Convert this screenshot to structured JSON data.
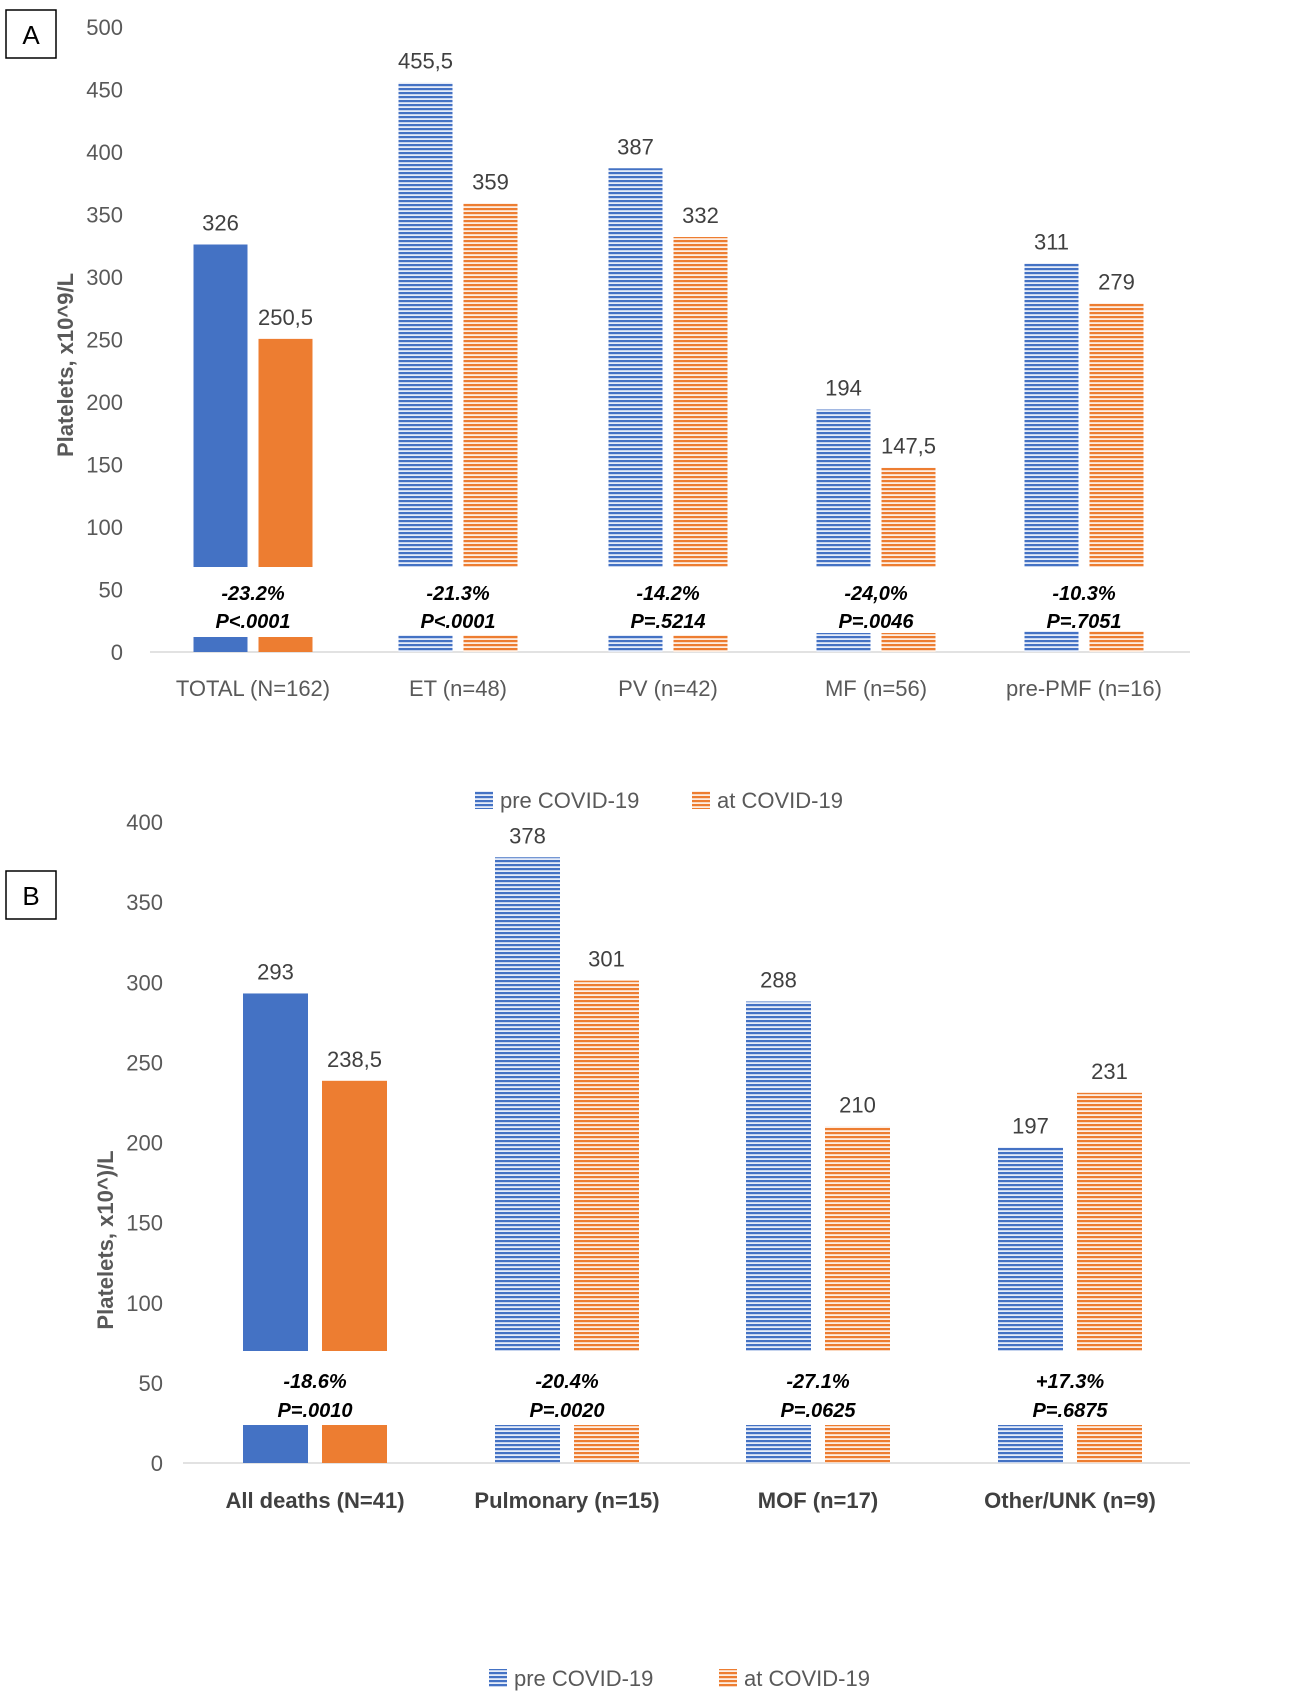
{
  "colors": {
    "pre": "#4472c4",
    "at": "#ed7d31",
    "axis": "#d9d9d9"
  },
  "chart_data": [
    {
      "type": "bar",
      "panel_label": "A",
      "ylabel": "Platelets, x10^9/L",
      "ylim": [
        0,
        500
      ],
      "yticks": [
        "0",
        "50",
        "100",
        "150",
        "200",
        "250",
        "300",
        "350",
        "400",
        "450",
        "500"
      ],
      "categories": [
        "TOTAL (N=162)",
        "ET (n=48)",
        "PV (n=42)",
        "MF (n=56)",
        "pre-PMF (n=16)"
      ],
      "bold_categories": false,
      "series": [
        {
          "name": "pre COVID-19",
          "values": [
            326,
            455.5,
            387,
            194,
            311
          ],
          "labels": [
            "326",
            "455,5",
            "387",
            "194",
            "311"
          ]
        },
        {
          "name": "at COVID-19",
          "values": [
            250.5,
            359,
            332,
            147.5,
            279
          ],
          "labels": [
            "250,5",
            "359",
            "332",
            "147,5",
            "279"
          ]
        }
      ],
      "annotations": [
        {
          "change": "-23.2%",
          "p": "P<.0001"
        },
        {
          "change": "-21.3%",
          "p": "P<.0001"
        },
        {
          "change": "-14.2%",
          "p": "P=.5214"
        },
        {
          "change": "-24,0%",
          "p": "P=.0046"
        },
        {
          "change": "-10.3%",
          "p": "P=.7051"
        }
      ],
      "legend": [
        "pre COVID-19",
        "at COVID-19"
      ],
      "legend_position": "bottom"
    },
    {
      "type": "bar",
      "panel_label": "B",
      "ylabel": "Platelets, x10^)/L",
      "ylim": [
        0,
        400
      ],
      "yticks": [
        "0",
        "50",
        "100",
        "150",
        "200",
        "250",
        "300",
        "350",
        "400"
      ],
      "categories": [
        "All deaths (N=41)",
        "Pulmonary (n=15)",
        "MOF (n=17)",
        "Other/UNK (n=9)"
      ],
      "bold_categories": true,
      "series": [
        {
          "name": "pre COVID-19",
          "values": [
            293,
            378,
            288,
            197
          ],
          "labels": [
            "293",
            "378",
            "288",
            "197"
          ]
        },
        {
          "name": "at COVID-19",
          "values": [
            238.5,
            301,
            210,
            231
          ],
          "labels": [
            "238,5",
            "301",
            "210",
            "231"
          ]
        }
      ],
      "annotations": [
        {
          "change": "-18.6%",
          "p": "P=.0010"
        },
        {
          "change": "-20.4%",
          "p": "P=.0020"
        },
        {
          "change": "-27.1%",
          "p": "P=.0625"
        },
        {
          "change": "+17.3%",
          "p": "P=.6875"
        }
      ],
      "legend": [
        "pre COVID-19",
        "at COVID-19"
      ],
      "legend_position": "bottom"
    }
  ]
}
